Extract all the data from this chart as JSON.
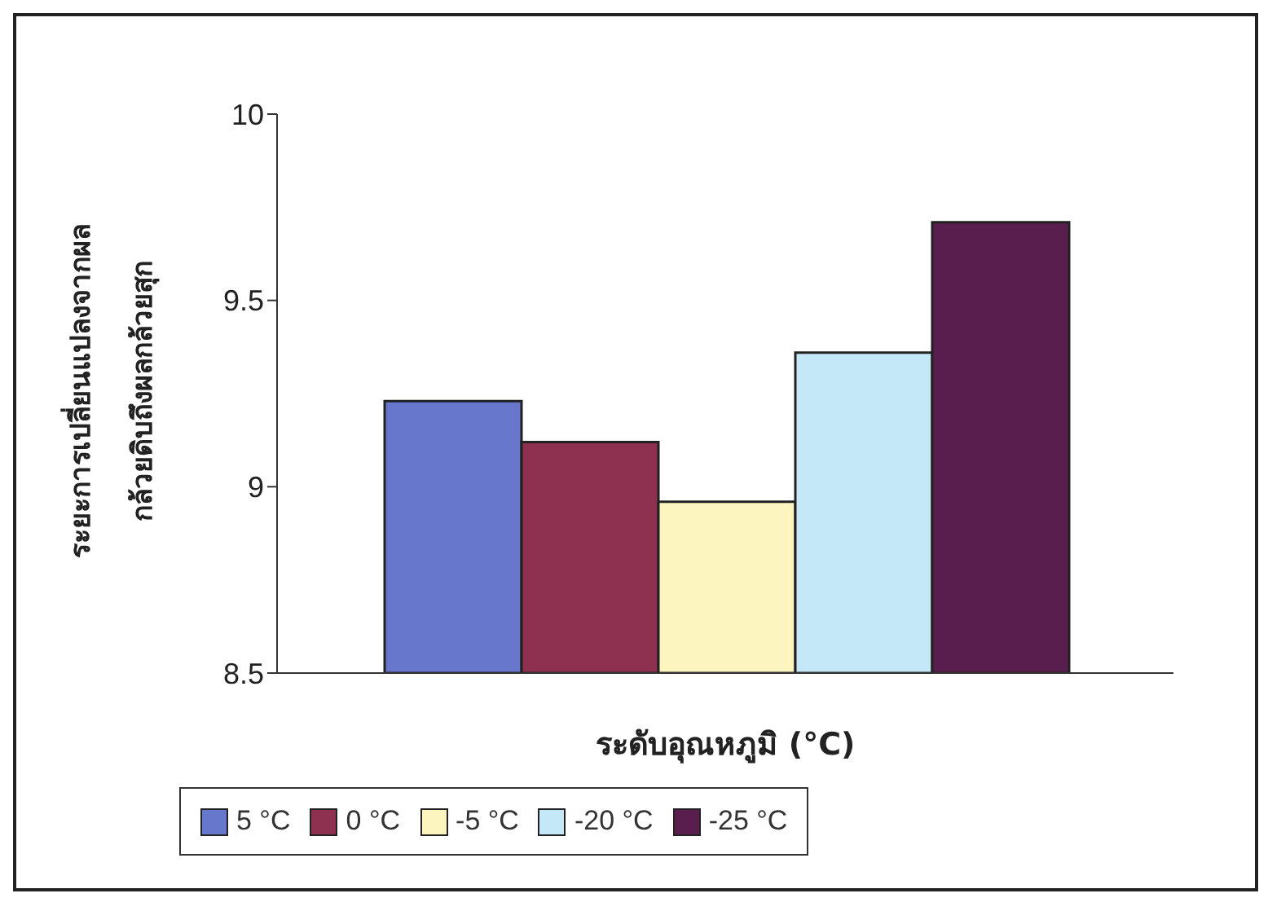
{
  "chart_data": {
    "type": "bar",
    "xlabel": "ระดับอุณหภูมิ (°C)",
    "ylabel": "ระยะการเปลี่ยนแปลงจากผล\nกล้วยดิบถึงผลกล้วยสุก",
    "categories": [
      null
    ],
    "series": [
      {
        "name": "5 °C",
        "color": "#6677cc",
        "values": [
          9.23
        ]
      },
      {
        "name": "0 °C",
        "color": "#8e3050",
        "values": [
          9.12
        ]
      },
      {
        "name": "-5 °C",
        "color": "#fcf5c0",
        "values": [
          8.96
        ]
      },
      {
        "name": "-20 °C",
        "color": "#c5e8f8",
        "values": [
          9.36
        ]
      },
      {
        "name": "-25 °C",
        "color": "#5a1e4e",
        "values": [
          9.71
        ]
      }
    ],
    "ylim": [
      8.5,
      10
    ],
    "yticks": [
      8.5,
      9,
      9.5,
      10
    ],
    "grid": false,
    "legend": "bottom"
  }
}
